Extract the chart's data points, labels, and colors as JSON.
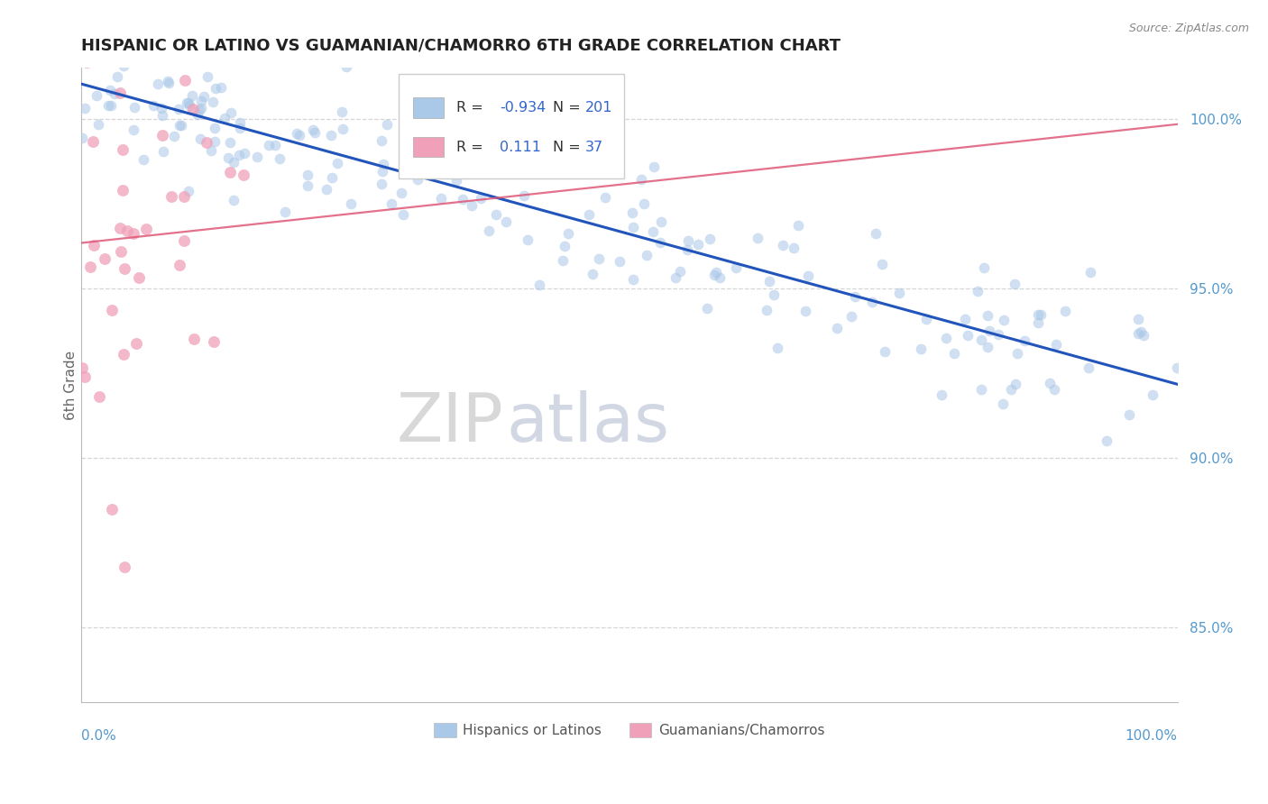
{
  "title": "HISPANIC OR LATINO VS GUAMANIAN/CHAMORRO 6TH GRADE CORRELATION CHART",
  "source": "Source: ZipAtlas.com",
  "ylabel": "6th Grade",
  "xlim": [
    0.0,
    1.0
  ],
  "ylim": [
    0.828,
    1.015
  ],
  "yticks": [
    0.85,
    0.9,
    0.95,
    1.0
  ],
  "ytick_labels": [
    "85.0%",
    "90.0%",
    "95.0%",
    "100.0%"
  ],
  "blue_R": -0.934,
  "blue_N": 201,
  "pink_R": 0.111,
  "pink_N": 37,
  "blue_color": "#aac8e8",
  "pink_color": "#f0a0b8",
  "blue_line_color": "#2255bb",
  "pink_line_color": "#e05878",
  "legend_label_blue": "Hispanics or Latinos",
  "legend_label_pink": "Guamanians/Chamorros",
  "title_fontsize": 13,
  "watermark_zip": "ZIP",
  "watermark_atlas": "atlas",
  "background_color": "#ffffff",
  "grid_color": "#cccccc",
  "tick_color": "#5599cc"
}
